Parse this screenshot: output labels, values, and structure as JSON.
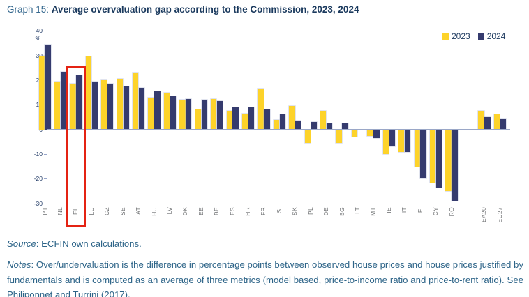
{
  "header": {
    "prefix": "Graph 15:",
    "title": "Average overvaluation gap according to the Commission, 2023, 2024"
  },
  "chart_data": {
    "type": "bar",
    "title": "Average overvaluation gap according to the Commission, 2023, 2024",
    "unit": "%",
    "ylim": [
      -30,
      40
    ],
    "ytick_step": 10,
    "grid": false,
    "legend_position": "top-right",
    "categories": [
      "PT",
      "NL",
      "EL",
      "LU",
      "CZ",
      "SE",
      "AT",
      "HU",
      "LV",
      "DK",
      "EE",
      "BE",
      "ES",
      "HR",
      "FR",
      "SI",
      "SK",
      "PL",
      "DE",
      "BG",
      "LT",
      "MT",
      "IE",
      "IT",
      "FI",
      "CY",
      "RO",
      "EA20",
      "EU27"
    ],
    "series": [
      {
        "name": "2023",
        "color": "#FDD32A",
        "values": [
          30,
          19.5,
          18.5,
          29.5,
          20,
          20.5,
          23,
          13,
          15,
          12,
          8,
          12.5,
          7.5,
          6.5,
          16.5,
          4,
          9.5,
          -5.5,
          7.5,
          -5.5,
          -3,
          -2.5,
          -10,
          -9,
          -15,
          -21.5,
          -25,
          7.5,
          6
        ]
      },
      {
        "name": "2024",
        "color": "#353B6E",
        "values": [
          34.5,
          23.5,
          22,
          19.5,
          18.5,
          17.5,
          17,
          15.5,
          13.5,
          12.5,
          12,
          11.5,
          9,
          9,
          8,
          6,
          3.5,
          3,
          2.5,
          2.5,
          0,
          -3.5,
          -7,
          -9,
          -20,
          -23.5,
          -29,
          5,
          4.5
        ]
      }
    ],
    "highlight": {
      "category": "EL",
      "box_color": "#E42313"
    },
    "separated_categories": [
      "EA20",
      "EU27"
    ]
  },
  "legend": {
    "items": [
      "2023",
      "2024"
    ]
  },
  "footer": {
    "source_label": "Source",
    "source_rest": ": ECFIN own calculations.",
    "notes_label": "Notes",
    "notes_rest": ": Over/undervaluation is the difference in percentage points between observed house prices and house prices justified by fundamentals and is computed as an average of three metrics (model based, price-to-income ratio and price-to-rent ratio). See Philiponnet and Turrini (2017)."
  }
}
